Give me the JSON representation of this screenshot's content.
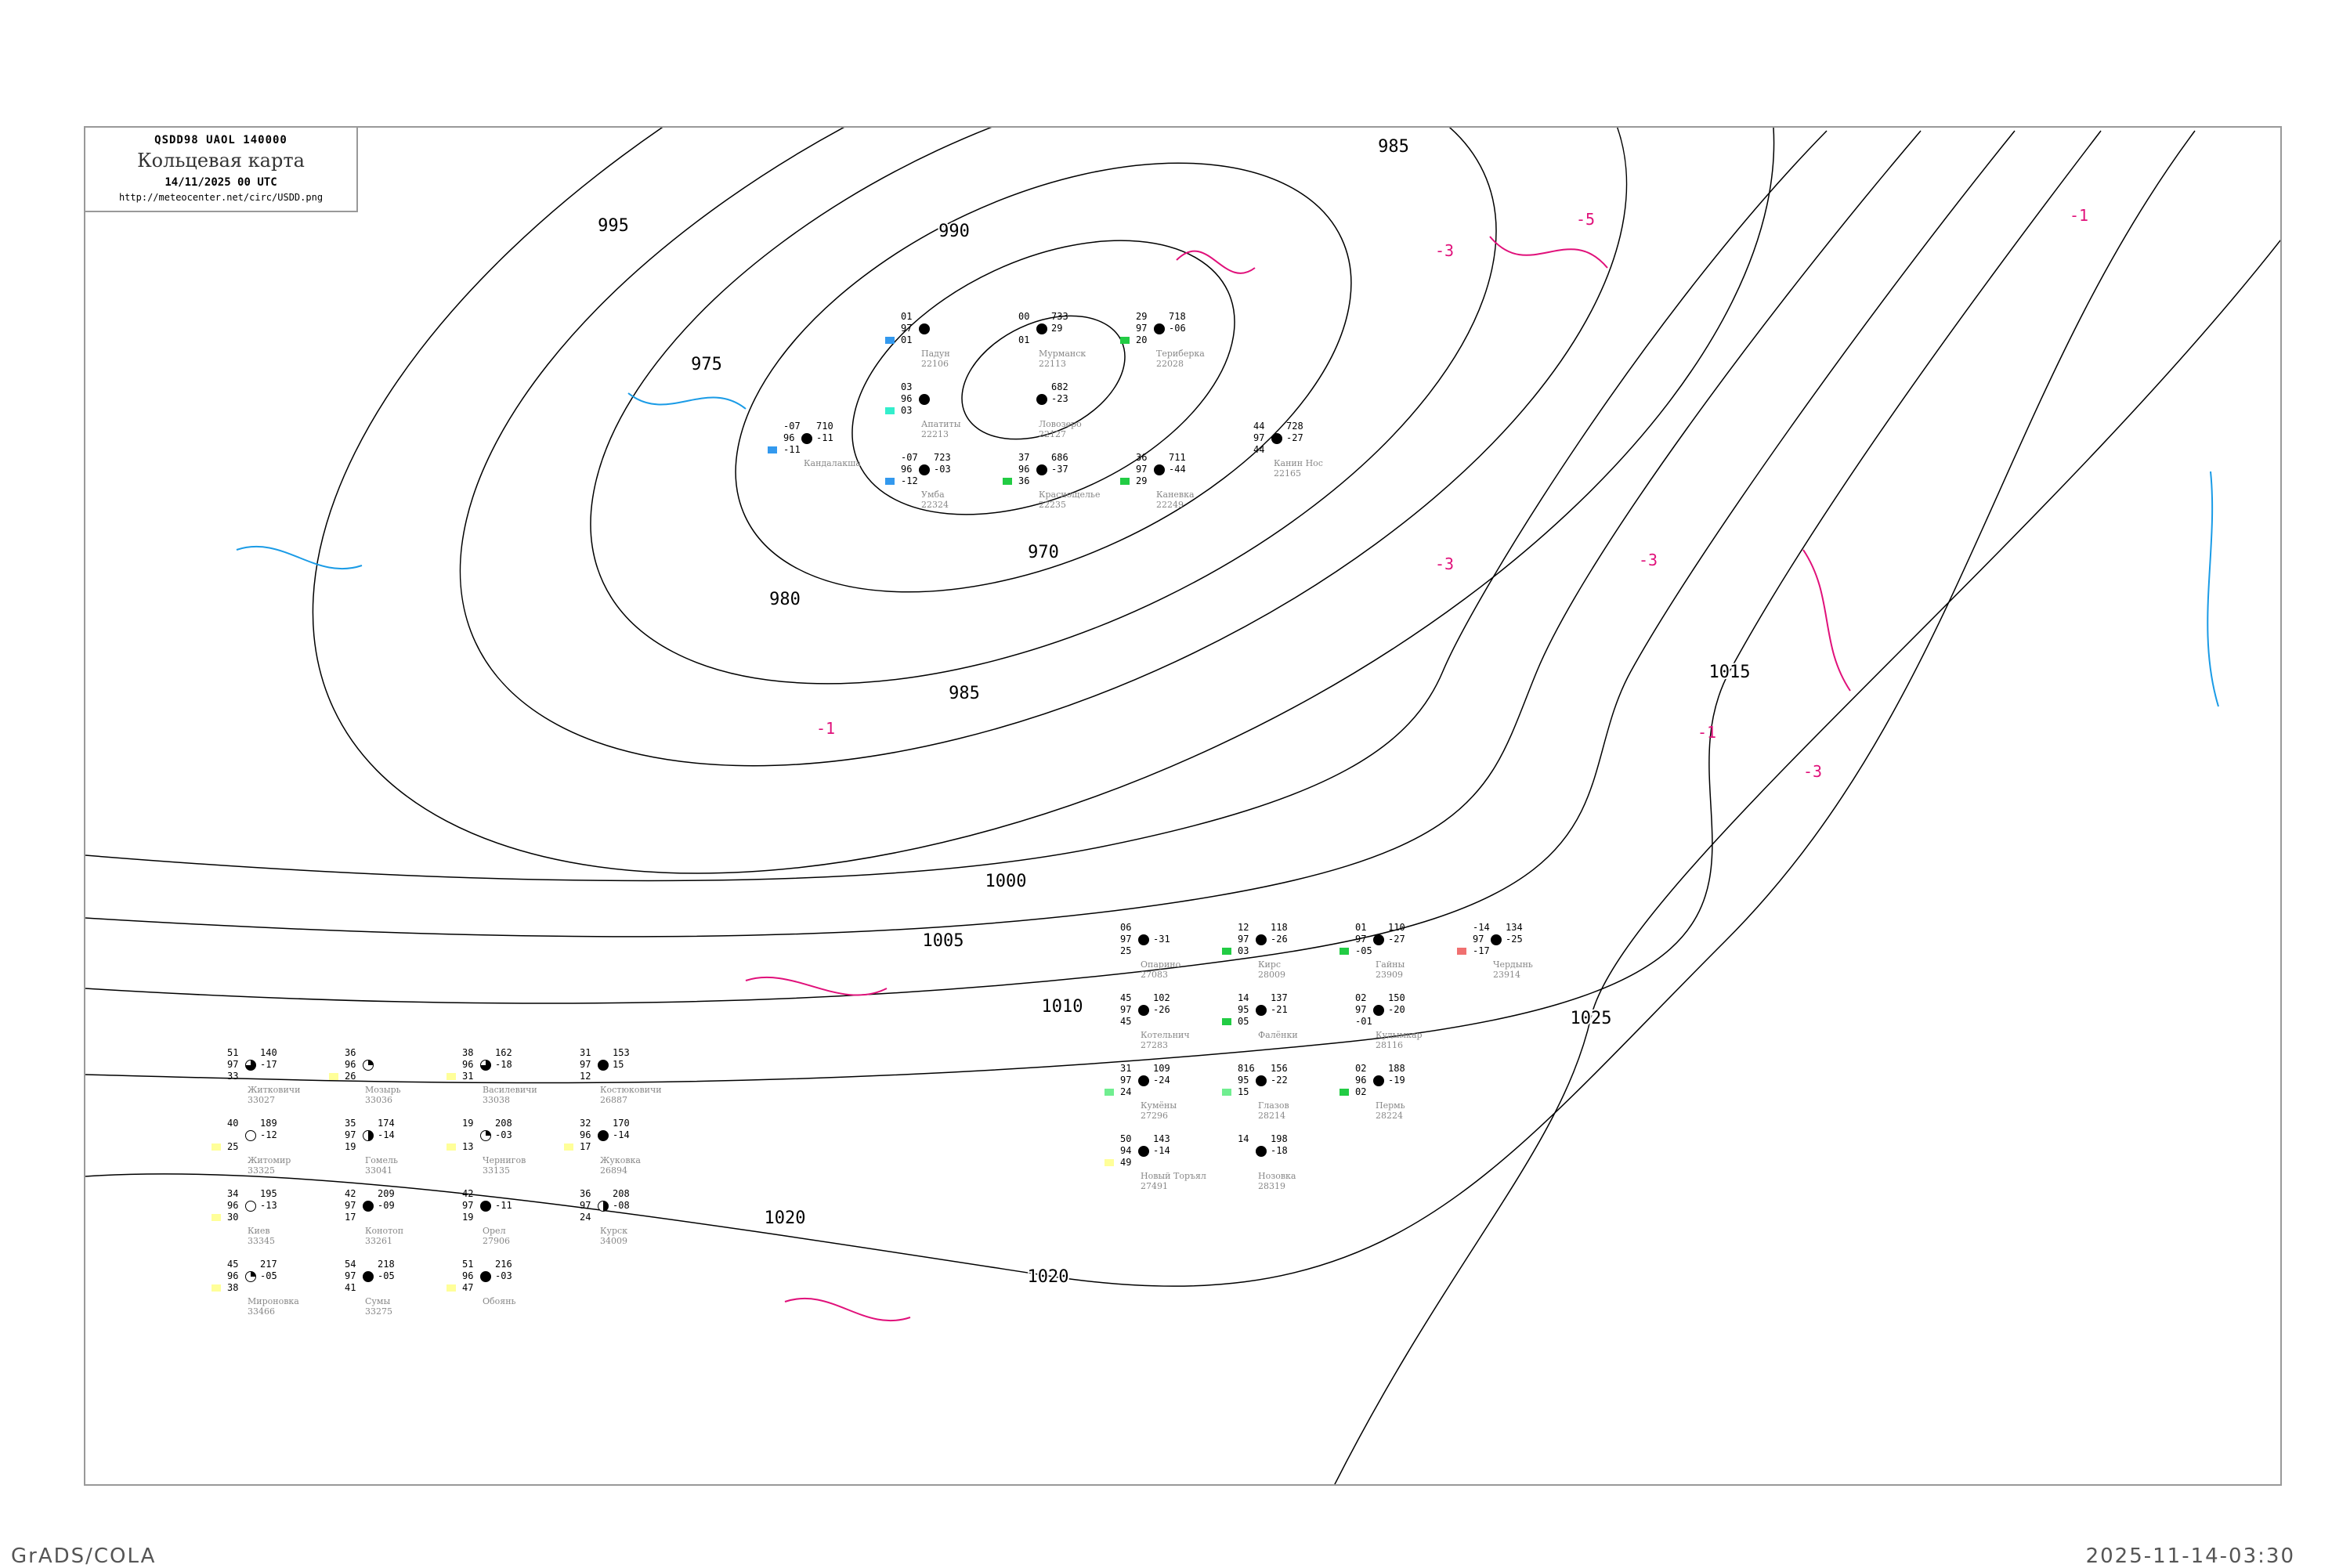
{
  "header": {
    "code": "QSDD98   UAOL   140000",
    "title": "Кольцевая карта",
    "datetime": "14/11/2025 00 UTC",
    "url": "http://meteocenter.net/circ/USDD.png"
  },
  "footer": {
    "left": "GrADS/COLA",
    "right": "2025-11-14-03:30"
  },
  "colors": {
    "isobar": "#000000",
    "isotherm_negative": "#e0107a",
    "isotherm_cold": "#1a9be6",
    "coast": "#aaaaaa",
    "station_name": "#888888"
  },
  "isobar_labels": [
    "970",
    "975",
    "980",
    "985",
    "990",
    "995",
    "985",
    "1000",
    "1005",
    "1010",
    "1015",
    "1020",
    "1020",
    "1025"
  ],
  "isotherm_labels": [
    "-3",
    "-3",
    "-5",
    "-1",
    "-3",
    "-1",
    "-3",
    "-1"
  ],
  "stations": [
    {
      "name": "Опарино",
      "id": "27083",
      "t": "06",
      "p": "97",
      "td": "25",
      "pr": "",
      "tend": "-31",
      "cover": "full"
    },
    {
      "name": "Гайны",
      "id": "23909",
      "t": "01",
      "p": "97",
      "td": "-05",
      "pr": "110",
      "tend": "-27",
      "cover": "full",
      "flag": "#22cc44"
    },
    {
      "name": "Чердынь",
      "id": "23914",
      "t": "-14",
      "p": "97",
      "td": "-17",
      "pr": "134",
      "tend": "-25",
      "cover": "full",
      "flag": "#f07070"
    },
    {
      "name": "Кирс",
      "id": "28009",
      "t": "12",
      "p": "97",
      "td": "03",
      "pr": "118",
      "tend": "-26",
      "cover": "full",
      "flag": "#22cc44"
    },
    {
      "name": "Котельнич",
      "id": "27283",
      "t": "45",
      "p": "97",
      "td": "45",
      "pr": "102",
      "tend": "-26",
      "cover": "full"
    },
    {
      "name": "Кумёны",
      "id": "27296",
      "t": "31",
      "p": "97",
      "td": "24",
      "pr": "109",
      "tend": "-24",
      "cover": "full",
      "flag": "#70ee90"
    },
    {
      "name": "Кудымкар",
      "id": "28116",
      "t": "02",
      "p": "97",
      "td": "-01",
      "pr": "150",
      "tend": "-20",
      "cover": "full"
    },
    {
      "name": "Глазов",
      "id": "28214",
      "t": "816",
      "p": "95",
      "td": "15",
      "pr": "156",
      "tend": "-22",
      "cover": "full",
      "flag": "#70ee90"
    },
    {
      "name": "Пермь",
      "id": "28224",
      "t": "02",
      "p": "96",
      "td": "02",
      "pr": "188",
      "tend": "-19",
      "cover": "full",
      "flag": "#22cc44"
    },
    {
      "name": "Новый Торъял",
      "id": "27491",
      "t": "50",
      "p": "94",
      "td": "49",
      "pr": "143",
      "tend": "-14",
      "cover": "full",
      "flag": "#ffff99"
    },
    {
      "name": "Фалёнки",
      "id": "",
      "t": "14",
      "p": "95",
      "td": "05",
      "pr": "137",
      "tend": "-21",
      "cover": "full",
      "flag": "#22cc44"
    },
    {
      "name": "Нозовка",
      "id": "28319",
      "t": "14",
      "p": "",
      "td": "",
      "pr": "198",
      "tend": "-18",
      "cover": "full"
    },
    {
      "name": "Териберка",
      "id": "22028",
      "t": "29",
      "p": "97",
      "td": "20",
      "pr": "718",
      "tend": "-06",
      "cover": "full",
      "flag": "#22cc44"
    },
    {
      "name": "Мурманск",
      "id": "22113",
      "t": "00",
      "p": "",
      "td": "01",
      "pr": "733",
      "tend": "29",
      "cover": "full"
    },
    {
      "name": "Падун",
      "id": "22106",
      "t": "01",
      "p": "97",
      "td": "01",
      "pr": "",
      "tend": "",
      "cover": "full",
      "flag": "#3399ee"
    },
    {
      "name": "Апатиты",
      "id": "22213",
      "t": "03",
      "p": "96",
      "td": "03",
      "pr": "",
      "tend": "",
      "cover": "full",
      "flag": "#33eecc"
    },
    {
      "name": "Ловозеро",
      "id": "22127",
      "t": "",
      "p": "",
      "td": "",
      "pr": "682",
      "tend": "-23",
      "cover": "full"
    },
    {
      "name": "Кандалакша",
      "id": "",
      "t": "-07",
      "p": "96",
      "td": "-11",
      "pr": "710",
      "tend": "-11",
      "cover": "full",
      "flag": "#3399ee"
    },
    {
      "name": "Умба",
      "id": "22324",
      "t": "-07",
      "p": "96",
      "td": "-12",
      "pr": "723",
      "tend": "-03",
      "cover": "full",
      "flag": "#3399ee"
    },
    {
      "name": "Краснощелье",
      "id": "22235",
      "t": "37",
      "p": "96",
      "td": "36",
      "pr": "686",
      "tend": "-37",
      "cover": "full",
      "flag": "#22cc44"
    },
    {
      "name": "Каневка",
      "id": "22249",
      "t": "36",
      "p": "97",
      "td": "29",
      "pr": "711",
      "tend": "-44",
      "cover": "full",
      "flag": "#22cc44"
    },
    {
      "name": "Канин Нос",
      "id": "22165",
      "t": "44",
      "p": "97",
      "td": "44",
      "pr": "728",
      "tend": "-27",
      "cover": "full"
    },
    {
      "name": "Житковичи",
      "id": "33027",
      "t": "51",
      "p": "97",
      "td": "33",
      "pr": "140",
      "tend": "-17",
      "cover": "threeq"
    },
    {
      "name": "Мозырь",
      "id": "33036",
      "t": "36",
      "p": "96",
      "td": "26",
      "pr": "",
      "tend": "",
      "cover": "quarter",
      "flag": "#ffff99"
    },
    {
      "name": "Василевичи",
      "id": "33038",
      "t": "38",
      "p": "96",
      "td": "31",
      "pr": "162",
      "tend": "-18",
      "cover": "threeq",
      "flag": "#ffff99"
    },
    {
      "name": "Гомель",
      "id": "33041",
      "t": "35",
      "p": "97",
      "td": "19",
      "pr": "174",
      "tend": "-14",
      "cover": "half"
    },
    {
      "name": "Чернигов",
      "id": "33135",
      "t": "19",
      "p": "",
      "td": "13",
      "pr": "208",
      "tend": "-03",
      "cover": "quarter",
      "flag": "#ffff99"
    },
    {
      "name": "Житомир",
      "id": "33325",
      "t": "40",
      "p": "",
      "td": "25",
      "pr": "189",
      "tend": "-12",
      "cover": "empty",
      "flag": "#ffff99"
    },
    {
      "name": "Киев",
      "id": "33345",
      "t": "34",
      "p": "96",
      "td": "30",
      "pr": "195",
      "tend": "-13",
      "cover": "empty",
      "flag": "#ffff99"
    },
    {
      "name": "Мироновка",
      "id": "33466",
      "t": "45",
      "p": "96",
      "td": "38",
      "pr": "217",
      "tend": "-05",
      "cover": "quarter",
      "flag": "#ffff99"
    },
    {
      "name": "Конотоп",
      "id": "33261",
      "t": "42",
      "p": "97",
      "td": "17",
      "pr": "209",
      "tend": "-09",
      "cover": "full"
    },
    {
      "name": "Сумы",
      "id": "33275",
      "t": "54",
      "p": "97",
      "td": "41",
      "pr": "218",
      "tend": "-05",
      "cover": "full"
    },
    {
      "name": "Жуковка",
      "id": "26894",
      "t": "32",
      "p": "96",
      "td": "17",
      "pr": "170",
      "tend": "-14",
      "cover": "full",
      "flag": "#ffff99"
    },
    {
      "name": "Костюковичи",
      "id": "26887",
      "t": "31",
      "p": "97",
      "td": "12",
      "pr": "153",
      "tend": "15",
      "cover": "full"
    },
    {
      "name": "Курск",
      "id": "34009",
      "t": "36",
      "p": "97",
      "td": "24",
      "pr": "208",
      "tend": "-08",
      "cover": "half"
    },
    {
      "name": "Обоянь",
      "id": "",
      "t": "51",
      "p": "96",
      "td": "47",
      "pr": "216",
      "tend": "-03",
      "cover": "full",
      "flag": "#ffff99"
    },
    {
      "name": "Орел",
      "id": "27906",
      "t": "42",
      "p": "97",
      "td": "19",
      "pr": "",
      "tend": "-11",
      "cover": "full"
    }
  ]
}
